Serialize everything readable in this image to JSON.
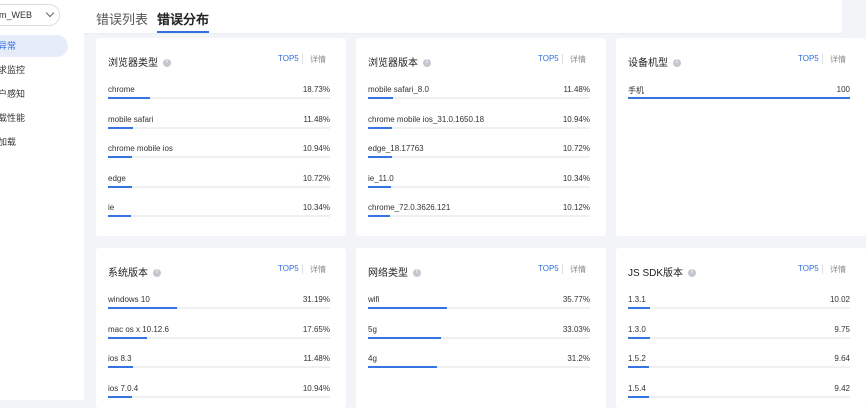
{
  "sidebar": {
    "app_select": "m_WEB",
    "items": [
      {
        "label": "异常",
        "active": true
      },
      {
        "label": "求监控",
        "active": false
      },
      {
        "label": "户感知",
        "active": false
      },
      {
        "label": "载性能",
        "active": false
      },
      {
        "label": "加载",
        "active": false
      }
    ]
  },
  "tabs": [
    {
      "label": "错误列表",
      "active": false
    },
    {
      "label": "错误分布",
      "active": true
    }
  ],
  "cards": [
    {
      "title": "浏览器类型",
      "top5": "TOP5",
      "detail": "详情",
      "rows": [
        {
          "name": "chrome",
          "value": "18.73%",
          "pct": 18.73
        },
        {
          "name": "mobile safari",
          "value": "11.48%",
          "pct": 11.48
        },
        {
          "name": "chrome mobile ios",
          "value": "10.94%",
          "pct": 10.94
        },
        {
          "name": "edge",
          "value": "10.72%",
          "pct": 10.72
        },
        {
          "name": "ie",
          "value": "10.34%",
          "pct": 10.34
        }
      ]
    },
    {
      "title": "浏览器版本",
      "top5": "TOP5",
      "detail": "详情",
      "rows": [
        {
          "name": "mobile safari_8.0",
          "value": "11.48%",
          "pct": 11.48
        },
        {
          "name": "chrome mobile ios_31.0.1650.18",
          "value": "10.94%",
          "pct": 10.94
        },
        {
          "name": "edge_18.17763",
          "value": "10.72%",
          "pct": 10.72
        },
        {
          "name": "ie_11.0",
          "value": "10.34%",
          "pct": 10.34
        },
        {
          "name": "chrome_72.0.3626.121",
          "value": "10.12%",
          "pct": 10.12
        }
      ]
    },
    {
      "title": "设备机型",
      "top5": "TOP5",
      "detail": "详情",
      "rows": [
        {
          "name": "手机",
          "value": "100",
          "pct": 100
        }
      ]
    },
    {
      "title": "系统版本",
      "top5": "TOP5",
      "detail": "详情",
      "rows": [
        {
          "name": "windows 10",
          "value": "31.19%",
          "pct": 31.19
        },
        {
          "name": "mac os x 10.12.6",
          "value": "17.65%",
          "pct": 17.65
        },
        {
          "name": "ios 8.3",
          "value": "11.48%",
          "pct": 11.48
        },
        {
          "name": "ios 7.0.4",
          "value": "10.94%",
          "pct": 10.94
        }
      ]
    },
    {
      "title": "网络类型",
      "top5": "TOP5",
      "detail": "详情",
      "rows": [
        {
          "name": "wifi",
          "value": "35.77%",
          "pct": 35.77
        },
        {
          "name": "5g",
          "value": "33.03%",
          "pct": 33.03
        },
        {
          "name": "4g",
          "value": "31.2%",
          "pct": 31.2
        }
      ]
    },
    {
      "title": "JS SDK版本",
      "top5": "TOP5",
      "detail": "详情",
      "rows": [
        {
          "name": "1.3.1",
          "value": "10.02",
          "pct": 10.02
        },
        {
          "name": "1.3.0",
          "value": "9.75",
          "pct": 9.75
        },
        {
          "name": "1.5.2",
          "value": "9.64",
          "pct": 9.64
        },
        {
          "name": "1.5.4",
          "value": "9.42",
          "pct": 9.42
        }
      ]
    }
  ]
}
